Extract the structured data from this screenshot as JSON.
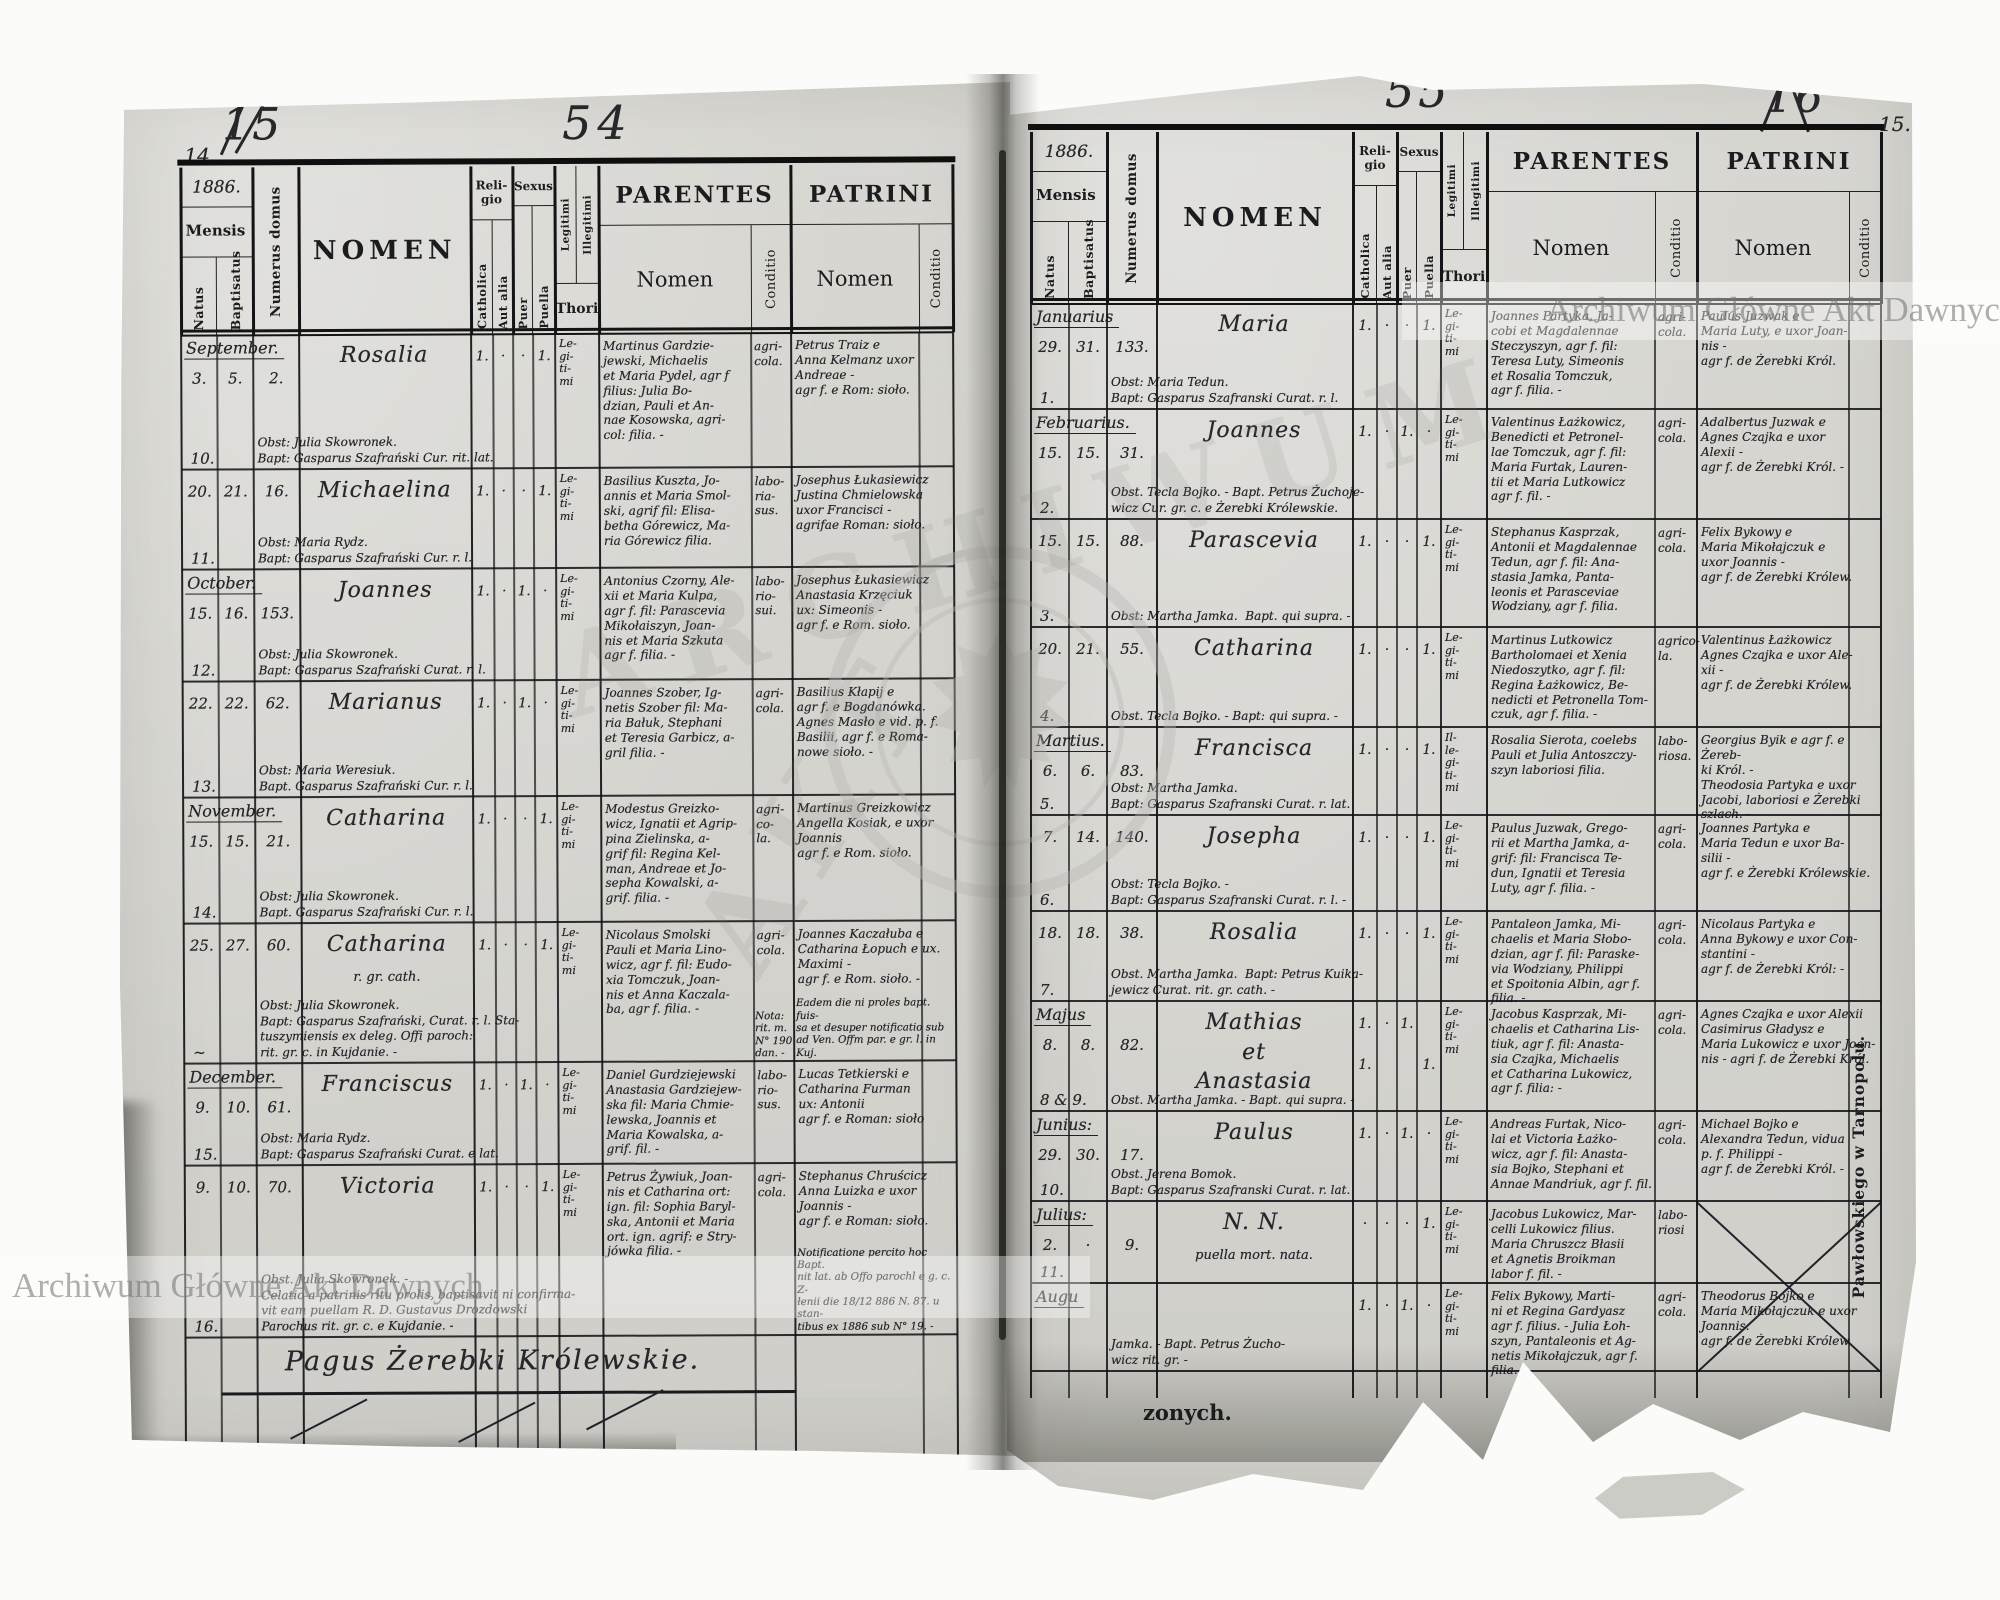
{
  "meta": {
    "watermark": "Archiwum Główne Akt Dawnych",
    "watermark_large_1": "ARCHIWUM",
    "watermark_large_2": "AKT",
    "printer_credit": "Pawłowskiego w Tarnopolu.",
    "torn_fragment": "zonych.",
    "colors": {
      "paper": "#d6d5d0",
      "ink": "#26262b",
      "rule": "#17171a",
      "watermark": "#8a8a88"
    }
  },
  "page_marks": {
    "left_corner_number": "14.",
    "left_crossed_number": "15",
    "left_center_number": "54",
    "right_center_number": "55",
    "right_crossed_number": "16",
    "right_corner_number": "15."
  },
  "header": {
    "year": "1886.",
    "mensis": "Mensis",
    "natus": "Natus",
    "baptisatus": "Baptisatus",
    "numerus_domus": "Numerus domus",
    "nomen": "NOMEN",
    "religio": "Reli-\ngio",
    "catholica": "Catholica",
    "aut_alia": "Aut alia",
    "sexus": "Sexus",
    "puer": "Puer",
    "puella": "Puella",
    "legitimi": "Legitimi",
    "illegitimi": "Illegitimi",
    "thori": "Thori",
    "parentes": "PARENTES",
    "patrini": "PATRINI",
    "sub_nomen": "Nomen",
    "conditio": "Conditio"
  },
  "left_page": {
    "footer_note": "Pagus Żerebki Królewskie.",
    "rows": [
      {
        "month": "September.",
        "natus": "3.",
        "baptisatus": "5.",
        "numerus": "2.",
        "name": "Rosalia",
        "catholica": "1.",
        "aut_alia": "·",
        "puer": "·",
        "puella": "1.",
        "thori": "Le-\ngi-\nti-\nmi",
        "parentes": "Martinus Gardzie-\njewski, Michaelis\net Maria Pydel, agr f\nfilius: Julia Bo-\ndzian, Pauli et An-\nnae Kosowska, agri-\ncol: filia. -",
        "conditio": "agri-\ncola.",
        "patrini": "Petrus Traiz e\nAnna Kelmanz uxor\nAndreae -\nagr f. e Rom: sioło.",
        "annotation": "Obst: Julia Skowronek.\nBapt: Gasparus Szafrański Cur. rit. lat.",
        "seq": "10."
      },
      {
        "natus": "20.",
        "baptisatus": "21.",
        "numerus": "16.",
        "name": "Michaelina",
        "catholica": "1.",
        "aut_alia": "·",
        "puer": "·",
        "puella": "1.",
        "thori": "Le-\ngi-\nti-\nmi",
        "parentes": "Basilius Kuszta, Jo-\nannis et Maria Smol-\nski, agrif fil: Elisa-\nbetha Górewicz, Ma-\nria Górewicz filia.",
        "conditio": "labo-\nria-\nsus.",
        "patrini": "Josephus Łukasiewicz\nJustina Chmielowska\nuxor Francisci -\nagrifae Roman: sioło.",
        "annotation": "Obst: Maria Rydz.\nBapt: Gasparus Szafrański Cur. r. l.",
        "seq": "11."
      },
      {
        "month": "October.",
        "natus": "15.",
        "baptisatus": "16.",
        "numerus": "153.",
        "name": "Joannes",
        "catholica": "1.",
        "aut_alia": "·",
        "puer": "1.",
        "puella": "·",
        "thori": "Le-\ngi-\nti-\nmi",
        "parentes": "Antonius Czorny, Ale-\nxii et Maria Kulpa,\nagr f. fil: Parascevia\nMikołaiszyn, Joan-\nnis et Maria Szkuta\nagr f. filia. -",
        "conditio": "labo-\nrio-\nsui.",
        "patrini": "Josephus Łukasiewicz\nAnastasia Krzęciuk\nux: Simeonis -\nagr f. e Rom. sioło.",
        "annotation": "Obst: Julia Skowronek.\nBapt: Gasparus Szafrański Curat. r. l.",
        "seq": "12."
      },
      {
        "natus": "22.",
        "baptisatus": "22.",
        "numerus": "62.",
        "name": "Marianus",
        "catholica": "1.",
        "aut_alia": "·",
        "puer": "1.",
        "puella": "·",
        "thori": "Le-\ngi-\nti-\nmi",
        "parentes": "Joannes Szober, Ig-\nnetis Szober fil: Ma-\nria Bałuk, Stephani\net Teresia Garbicz, a-\ngril filia. -",
        "conditio": "agri-\ncola.",
        "patrini": "Basilius Kłapij e\nagr f. e Bogdanówka.\nAgnes Masło e vid. p. f.\nBasilii, agr f. e Roma-\nnowe sioło. -",
        "annotation": "Obst: Maria Weresiuk.\nBapt. Gasparus Szafrański Cur. r. l.",
        "seq": "13."
      },
      {
        "month": "November.",
        "natus": "15.",
        "baptisatus": "15.",
        "numerus": "21.",
        "name": "Catharina",
        "catholica": "1.",
        "aut_alia": "·",
        "puer": "·",
        "puella": "1.",
        "thori": "Le-\ngi-\nti-\nmi",
        "parentes": "Modestus Greizko-\nwicz, Ignatii et Agrip-\npina Zielinska, a-\ngrif fil: Regina Kel-\nman, Andreae et Jo-\nsepha Kowalski, a-\ngrif. filia. -",
        "conditio": "agri-\nco-\nla.",
        "patrini": "Martinus Greizkowicz\nAngella Kosiak, e uxor\nJoannis\nagr f. e Rom. sioło.",
        "annotation": "Obst: Julia Skowronek.\nBapt. Gasparus Szafrański Cur. r. l.",
        "seq": "14."
      },
      {
        "natus": "25.",
        "baptisatus": "27.",
        "numerus": "60.",
        "name": "Catharina",
        "name_note": "r. gr. cath.",
        "catholica": "1.",
        "aut_alia": "·",
        "puer": "·",
        "puella": "1.",
        "thori": "Le-\ngi-\nti-\nmi",
        "parentes": "Nicolaus Smolski\nPauli et Maria Lino-\nwicz, agr f. fil: Eudo-\nxia Tomczuk, Joan-\nnis et Anna Kaczala-\nba, agr f. filia. -",
        "conditio": "agri-\ncola.",
        "conditio_note": "Nota:\nrit. m.\nN° 190\ndan. -",
        "patrini": "Joannes Kaczałuba e\nCatharina Łopuch e ux.\nMaximi -\nagr f. e Rom. sioło. -",
        "patrini_note": "Eadem die ni proles bapt. fuis-\nsa et desuper notificatio sub\nad Ven. Offm par. e gr. l. in Kuj.",
        "annotation": "Obst: Julia Skowronek.\nBapt: Gasparus Szafrański, Curat. r. l. Sta-\ntuszymiensis ex deleg. Offi paroch:\nrit. gr. c. in Kujdanie. -",
        "seq": "~"
      },
      {
        "month": "December.",
        "natus": "9.",
        "baptisatus": "10.",
        "numerus": "61.",
        "name": "Franciscus",
        "catholica": "1.",
        "aut_alia": "·",
        "puer": "1.",
        "puella": "·",
        "thori": "Le-\ngi-\nti-\nmi",
        "parentes": "Daniel Gurdziejewski\nAnastasia Gardziejew-\nska fil: Maria Chmie-\nlewska, Joannis et\nMaria Kowalska, a-\ngrif. fil. -",
        "conditio": "labo-\nrio-\nsus.",
        "patrini": "Lucas Tetkierski e\nCatharina Furman\nux: Antonii\nagr f. e Roman: sioło",
        "annotation": "Obst: Maria Rydz.\nBapt: Gasparus Szafrański Curat. e lat.",
        "seq": "15."
      },
      {
        "natus": "9.",
        "baptisatus": "10.",
        "numerus": "70.",
        "name": "Victoria",
        "catholica": "1.",
        "aut_alia": "·",
        "puer": "·",
        "puella": "1.",
        "thori": "Le-\ngi-\nti-\nmi",
        "parentes": "Petrus Żywiuk, Joan-\nnis et Catharina ort:\nign. fil: Sophia Baryl-\nska, Antonii et Maria\nort. ign. agrif: e Stry-\njówka filia. -",
        "conditio": "agri-\ncola.",
        "patrini": "Stephanus Chruścicz\nAnna Luizka e uxor\nJoannis -\nagr f. e Roman: sioło.",
        "patrini_note": "Notificatione percito hoc Bapt.\nnit lat. ab Offo parochl e g. c. Z-\nłenii die 18/12 886 N. 87. u stan-\ntibus ex 1886 sub N° 19. -",
        "annotation": "Obst. Julia Skowronek. -\nCelatio a patrinis ritu prolis, baptisavit ni confirma-\nvit eam puellam R. D. Gustavus Drozdowski\nParochus rit. gr. c. e Kujdanie. -",
        "seq": "16."
      }
    ]
  },
  "right_page": {
    "rows": [
      {
        "month": "Januarius",
        "natus": "29.",
        "baptisatus": "31.",
        "numerus": "133.",
        "name": "Maria",
        "catholica": "1.",
        "aut_alia": "·",
        "puer": "·",
        "puella": "1.",
        "thori": "Le-\ngi-\nti-\nmi",
        "parentes": "Joannes Partyka, Ja-\ncobi et Magdalennae\nSteczyszyn, agr f. fil:\nTeresa Luty, Simeonis\net Rosalia Tomczuk,\nagr f. filia. -",
        "conditio": "agri-\ncola.",
        "patrini": "Paulus Juzwak e\nMaria Luty, e uxor Joan-\nnis -\nagr f. de Żerebki Król.",
        "annotation": "Obst: Maria Tedun.\nBapt: Gasparus Szafranski Curat. r. l.",
        "seq": "1."
      },
      {
        "month": "Februarius.",
        "natus": "15.",
        "baptisatus": "15.",
        "numerus": "31.",
        "name": "Joannes",
        "catholica": "1.",
        "aut_alia": "·",
        "puer": "1.",
        "puella": "·",
        "thori": "Le-\ngi-\nti-\nmi",
        "parentes": "Valentinus Łażkowicz,\nBenedicti et Petronel-\nlae Tomczuk, agr f. fil:\nMaria Furtak, Lauren-\ntii et Maria Lutkowicz\nagr f. fil. -",
        "conditio": "agri-\ncola.",
        "patrini": "Adalbertus Juzwak e\nAgnes Czajka e uxor\nAlexii -\nagr f. de Żerebki Król. -",
        "annotation": "Obst. Tecla Bojko. - Bapt. Petrus Żuchoje-\nwicz Cur. gr. c. e Żerebki Królewskie.",
        "seq": "2."
      },
      {
        "natus": "15.",
        "baptisatus": "15.",
        "numerus": "88.",
        "name": "Parascevia",
        "catholica": "1.",
        "aut_alia": "·",
        "puer": "·",
        "puella": "1.",
        "thori": "Le-\ngi-\nti-\nmi",
        "parentes": "Stephanus Kasprzak,\nAntonii et Magdalennae\nTedun, agr f. fil: Ana-\nstasia Jamka, Panta-\nleonis et Parasceviae\nWodziany, agr f. filia.",
        "conditio": "agri-\ncola.",
        "patrini": "Felix Bykowy e\nMaria Mikołajczuk e\nuxor Joannis -\nagr f. de Żerebki Królew.",
        "annotation": "Obst: Martha Jamka.  Bapt. qui supra. -",
        "seq": "3."
      },
      {
        "natus": "20.",
        "baptisatus": "21.",
        "numerus": "55.",
        "name": "Catharina",
        "catholica": "1.",
        "aut_alia": "·",
        "puer": "·",
        "puella": "1.",
        "thori": "Le-\ngi-\nti-\nmi",
        "parentes": "Martinus Lutkowicz\nBartholomaei et Xenia\nNiedoszytko, agr f. fil:\nRegina Łażkowicz, Be-\nnedicti et Petronella Tom-\nczuk, agr f. filia. -",
        "conditio": "agrico-\nla.",
        "patrini": "Valentinus Łażkowicz\nAgnes Czajka e uxor Ale-\nxii -\nagr f. de Żerebki Królew.",
        "annotation": "Obst. Tecla Bojko. - Bapt: qui supra. -",
        "seq": "4."
      },
      {
        "month": "Martius.",
        "natus": "6.",
        "baptisatus": "6.",
        "numerus": "83.",
        "name": "Francisca",
        "catholica": "1.",
        "aut_alia": "·",
        "puer": "·",
        "puella": "1.",
        "thori": "Il-\nle-\ngi-\nti-\nmi",
        "parentes": "Rosalia Sierota, coelebs\nPauli et Julia Antoszczy-\nszyn laboriosi filia.",
        "conditio": "labo-\nriosa.",
        "patrini": "Georgius Byik e agr f. e Żereb-\nki Król. -\nTheodosia Partyka e uxor\nJacobi, laboriosi e Żerebki\nszlach. -",
        "annotation": "Obst: Martha Jamka.\nBapt: Gasparus Szafranski Curat. r. lat.",
        "seq": "5."
      },
      {
        "natus": "7.",
        "baptisatus": "14.",
        "numerus": "140.",
        "name": "Josepha",
        "catholica": "1.",
        "aut_alia": "·",
        "puer": "·",
        "puella": "1.",
        "thori": "Le-\ngi-\nti-\nmi",
        "parentes": "Paulus Juzwak, Grego-\nrii et Martha Jamka, a-\ngrif: fil: Francisca Te-\ndun, Ignatii et Teresia\nLuty, agr f. filia. -",
        "conditio": "agri-\ncola.",
        "patrini": "Joannes Partyka e\nMaria Tedun e uxor Ba-\nsilii -\nagr f. e Żerebki Królewskie.",
        "annotation": "Obst: Tecla Bojko. -\nBapt: Gasparus Szafranski Curat. r. l. -",
        "seq": "6."
      },
      {
        "natus": "18.",
        "baptisatus": "18.",
        "numerus": "38.",
        "name": "Rosalia",
        "catholica": "1.",
        "aut_alia": "·",
        "puer": "·",
        "puella": "1.",
        "thori": "Le-\ngi-\nti-\nmi",
        "parentes": "Pantaleon Jamka, Mi-\nchaelis et Maria Słobo-\ndzian, agr f. fil: Paraske-\nvia Wodziany, Philippi\net Spoitonia Albin, agr f.\nfilia. -",
        "conditio": "agri-\ncola.",
        "patrini": "Nicolaus Partyka e\nAnna Bykowy e uxor Con-\nstantini -\nagr f. de Żerebki Król: -",
        "annotation": "Obst. Martha Jamka.  Bapt: Petrus Kuika-\njewicz Curat. rit. gr. cath. -",
        "seq": "7."
      },
      {
        "month": "Majus",
        "natus": "8.",
        "baptisatus": "8.",
        "numerus": "82.",
        "name": "Mathias\net\nAnastasia",
        "catholica": "1.\n\n1.",
        "aut_alia": "·",
        "puer": "1.",
        "puella": "\n\n1.",
        "thori": "Le-\ngi-\nti-\nmi",
        "parentes": "Jacobus Kasprzak, Mi-\nchaelis et Catharina Lis-\ntiuk, agr f. fil: Anasta-\nsia Czajka, Michaelis\net Catharina Lukowicz,\nagr f. filia: -",
        "conditio": "agri-\ncola.",
        "patrini": "Agnes Czajka e uxor Alexii\nCasimirus Gładysz e\nMaria Lukowicz e uxor Joan-\nnis - agri f. de Żerebki Król.",
        "annotation": "Obst. Martha Jamka. - Bapt. qui supra. -",
        "seq": "8 & 9."
      },
      {
        "month": "Junius:",
        "natus": "29.",
        "baptisatus": "30.",
        "numerus": "17.",
        "name": "Paulus",
        "catholica": "1.",
        "aut_alia": "·",
        "puer": "1.",
        "puella": "·",
        "thori": "Le-\ngi-\nti-\nmi",
        "parentes": "Andreas Furtak, Nico-\nlai et Victoria Łażko-\nwicz, agr f. fil: Anasta-\nsia Bojko, Stephani et\nAnnae Mandriuk, agr f. fil.",
        "conditio": "agri-\ncola.",
        "patrini": "Michael Bojko e\nAlexandra Tedun, vidua\np. f. Philippi -\nagr f. de Żerebki Król. -",
        "annotation": "Obst. Jerena Bomok.\nBapt: Gasparus Szafranski Curat. r. lat.",
        "seq": "10."
      },
      {
        "month": "Julius:",
        "natus": "2.",
        "baptisatus": "·",
        "numerus": "9.",
        "name": "N. N.",
        "name_note": "puella mort. nata.",
        "catholica": "·",
        "aut_alia": "·",
        "puer": "·",
        "puella": "1.",
        "thori": "Le-\ngi-\nti-\nmi",
        "parentes": "Jacobus Lukowicz, Mar-\ncelli Lukowicz filius.\nMaria Chruszcz Błasii\net Agnetis Broikman\nlabor f. fil. -",
        "conditio": "labo-\nriosi",
        "cross": true,
        "seq": "11."
      },
      {
        "month": "Augu",
        "catholica": "1.",
        "aut_alia": "·",
        "puer": "1.",
        "puella": "·",
        "thori": "Le-\ngi-\nti-\nmi",
        "parentes": "Felix Bykowy, Marti-\nni et Regina Gardyasz\nagr f. filius. - Julia Łoh-\nszyn, Pantaleonis et Ag-\nnetis Mikołajczuk, agr f. filia.",
        "conditio": "agri-\ncola.",
        "patrini": "Theodorus Bojko e\nMaria Mikołajczuk e uxor\nJoannis.\nagr f. de Żerebki Królew.",
        "annotation": "Jamka. - Bapt. Petrus Żucho-\nwicz rit. gr. -",
        "seq": ""
      }
    ]
  }
}
